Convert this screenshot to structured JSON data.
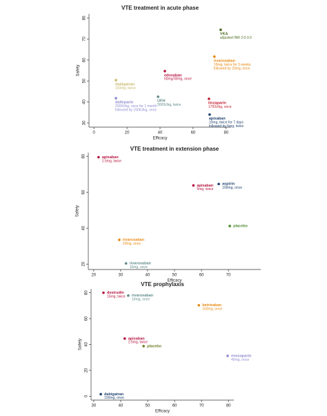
{
  "chart_data": [
    {
      "type": "scatter",
      "title": "VTE treatment in acute phase",
      "xlabel": "Efficacy",
      "ylabel": "Safety",
      "xlim": [
        -3,
        83
      ],
      "xticks": [
        0,
        20,
        40,
        60,
        80
      ],
      "ylim": [
        28,
        82
      ],
      "yticks": [
        30,
        40,
        50,
        60,
        70,
        80
      ],
      "points": [
        {
          "name": "VKA",
          "detail": [
            "adjusted INR 2.0-3.0"
          ],
          "color": "#4a6b1f",
          "x": 76.7,
          "y": 74.4
        },
        {
          "name": "rivaroxaban",
          "detail": [
            "15mg, twice for 3 weeks",
            "followed by 20mg, once"
          ],
          "color": "#e8870e",
          "x": 72.9,
          "y": 61.6
        },
        {
          "name": "edoxaban",
          "detail": [
            "60mg/30mg, once"
          ],
          "color": "#b5123e",
          "x": 42.9,
          "y": 54.7
        },
        {
          "name": "dabigatran",
          "detail": [
            "150mg, twice"
          ],
          "color": "#c8b96a",
          "x": 13.3,
          "y": 50.4
        },
        {
          "name": "dalteparin",
          "detail": [
            "200IU/kg, once for 1 month",
            "followed by 150IU/kg, once"
          ],
          "color": "#8f8ad0",
          "x": 13.3,
          "y": 41.8
        },
        {
          "name": "UFH",
          "detail": [
            "500IU/kg, twice"
          ],
          "color": "#5f8a8a",
          "x": 38.8,
          "y": 42.5
        },
        {
          "name": "tinzaparin",
          "detail": [
            "175IU/kg, once"
          ],
          "color": "#c0182a",
          "x": 69.6,
          "y": 41.5
        },
        {
          "name": "apixaban",
          "detail": [
            "10mg, twice for 7 days",
            "followed by 5mg, twice"
          ],
          "color": "#1d3f6e",
          "x": 70,
          "y": 34
        }
      ]
    },
    {
      "type": "scatter",
      "title": "VTE treatment in extension phase",
      "xlabel": "Efficacy",
      "ylabel": "Safety",
      "xlim": [
        18,
        82
      ],
      "xticks": [
        20,
        30,
        40,
        50,
        60,
        70
      ],
      "ylim": [
        17,
        82
      ],
      "yticks": [
        20,
        40,
        60,
        80
      ],
      "points": [
        {
          "name": "apixaban",
          "detail": [
            "2.5mg, twice"
          ],
          "color": "#b5123e",
          "x": 21.8,
          "y": 79.5
        },
        {
          "name": "apixaban",
          "detail": [
            "5mg, twice"
          ],
          "color": "#b5123e",
          "x": 57,
          "y": 63.8
        },
        {
          "name": "aspirin",
          "detail": [
            "100mg, once"
          ],
          "color": "#1d3f6e",
          "x": 66.4,
          "y": 64.6
        },
        {
          "name": "placebo",
          "detail": [],
          "color": "#4a8a2a",
          "x": 70.5,
          "y": 41.2
        },
        {
          "name": "rivaroxaban",
          "detail": [
            "20mg, once"
          ],
          "color": "#e8870e",
          "x": 29.5,
          "y": 33.5
        },
        {
          "name": "rivaroxaban",
          "detail": [
            "10mg, once"
          ],
          "color": "#5f8a8a",
          "x": 32,
          "y": 20.4
        }
      ]
    },
    {
      "type": "scatter",
      "title": "VTE prophylaxis",
      "xlabel": "Efficacy",
      "ylabel": "Safety",
      "xlim": [
        29,
        82
      ],
      "xticks": [
        30,
        40,
        50,
        60,
        70,
        80
      ],
      "ylim": [
        -3,
        83
      ],
      "yticks": [
        0,
        20,
        40,
        60,
        80
      ],
      "points": [
        {
          "name": "desirudin",
          "detail": [
            "15mg, twice"
          ],
          "color": "#b5123e",
          "x": 33.6,
          "y": 80
        },
        {
          "name": "rivaroxaban",
          "detail": [
            "10mg, once"
          ],
          "color": "#5f8a8a",
          "x": 42.8,
          "y": 77.8
        },
        {
          "name": "betrixaban",
          "detail": [
            "160mg, once"
          ],
          "color": "#e8870e",
          "x": 69,
          "y": 70.3
        },
        {
          "name": "apixaban",
          "detail": [
            "2.5mg, twice"
          ],
          "color": "#b5123e",
          "x": 41.5,
          "y": 44.6
        },
        {
          "name": "placebo",
          "detail": [],
          "color": "#6b7a1f",
          "x": 48.5,
          "y": 38.7
        },
        {
          "name": "enoxaparin",
          "detail": [
            "40mg, once"
          ],
          "color": "#8f8ad0",
          "x": 79.7,
          "y": 31.2
        },
        {
          "name": "dabigatran",
          "detail": [
            "150mg, once"
          ],
          "color": "#1d3f6e",
          "x": 32.6,
          "y": 1.6
        }
      ]
    }
  ]
}
